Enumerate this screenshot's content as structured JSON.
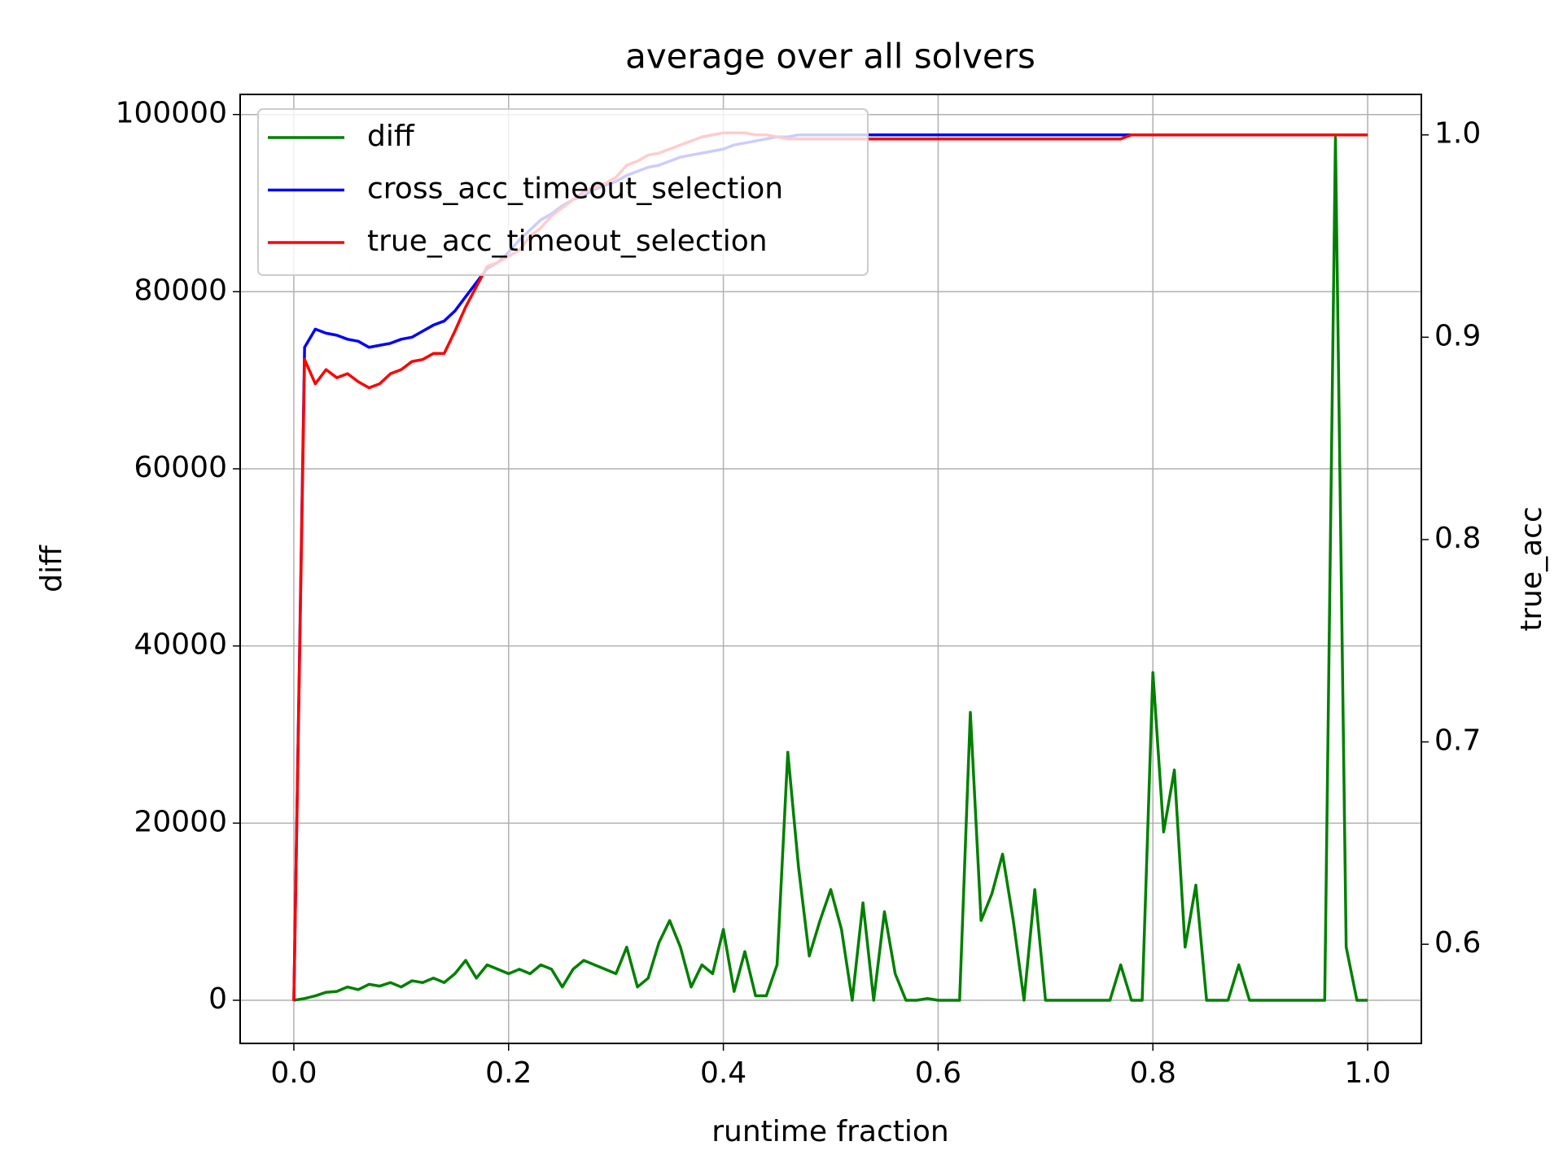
{
  "chart_data": {
    "type": "line",
    "title": "average over all solvers",
    "xlabel": "runtime fraction",
    "ylabel": "diff",
    "y2label": "true_acc",
    "ylabel_color": "#008000",
    "y2label_color": "#ff0000",
    "x": [
      0.0,
      0.01,
      0.02,
      0.03,
      0.04,
      0.05,
      0.06,
      0.07,
      0.08,
      0.09,
      0.1,
      0.11,
      0.12,
      0.13,
      0.14,
      0.15,
      0.16,
      0.17,
      0.18,
      0.19,
      0.2,
      0.21,
      0.22,
      0.23,
      0.24,
      0.25,
      0.26,
      0.27,
      0.28,
      0.29,
      0.3,
      0.31,
      0.32,
      0.33,
      0.34,
      0.35,
      0.36,
      0.37,
      0.38,
      0.39,
      0.4,
      0.41,
      0.42,
      0.43,
      0.44,
      0.45,
      0.46,
      0.47,
      0.48,
      0.49,
      0.5,
      0.51,
      0.52,
      0.53,
      0.54,
      0.55,
      0.56,
      0.57,
      0.58,
      0.59,
      0.6,
      0.61,
      0.62,
      0.63,
      0.64,
      0.65,
      0.66,
      0.67,
      0.68,
      0.69,
      0.7,
      0.71,
      0.72,
      0.73,
      0.74,
      0.75,
      0.76,
      0.77,
      0.78,
      0.79,
      0.8,
      0.81,
      0.82,
      0.83,
      0.84,
      0.85,
      0.86,
      0.87,
      0.88,
      0.89,
      0.9,
      0.91,
      0.92,
      0.93,
      0.94,
      0.95,
      0.96,
      0.97,
      0.98,
      0.99,
      1.0
    ],
    "series": [
      {
        "name": "diff",
        "color": "#008000",
        "axis": "y",
        "values": [
          0,
          200,
          500,
          900,
          1000,
          1500,
          1200,
          1800,
          1600,
          2000,
          1500,
          2200,
          2000,
          2500,
          2000,
          3000,
          4500,
          2500,
          4000,
          3500,
          3000,
          3500,
          3000,
          4000,
          3500,
          1500,
          3500,
          4500,
          4000,
          3500,
          3000,
          6000,
          1500,
          2500,
          6500,
          9000,
          6000,
          1500,
          4000,
          3000,
          8000,
          1000,
          5500,
          500,
          500,
          4000,
          28000,
          15000,
          5000,
          9000,
          12500,
          8000,
          0,
          11000,
          0,
          10000,
          3000,
          0,
          0,
          200,
          0,
          0,
          0,
          32500,
          9000,
          12000,
          16500,
          9000,
          0,
          12500,
          0,
          0,
          0,
          0,
          0,
          0,
          0,
          4000,
          0,
          0,
          37000,
          19000,
          26000,
          6000,
          13000,
          0,
          0,
          0,
          4000,
          0,
          0,
          0,
          0,
          0,
          0,
          0,
          0,
          97400,
          6000,
          0,
          0
        ]
      },
      {
        "name": "cross_acc_timeout_selection",
        "color": "#0000ff",
        "axis": "y2",
        "values": [
          0.572,
          0.895,
          0.904,
          0.902,
          0.901,
          0.899,
          0.898,
          0.895,
          0.896,
          0.897,
          0.899,
          0.9,
          0.903,
          0.906,
          0.908,
          0.913,
          0.92,
          0.927,
          0.934,
          0.937,
          0.942,
          0.948,
          0.953,
          0.958,
          0.961,
          0.965,
          0.968,
          0.97,
          0.973,
          0.975,
          0.977,
          0.98,
          0.982,
          0.984,
          0.985,
          0.987,
          0.989,
          0.99,
          0.991,
          0.992,
          0.993,
          0.995,
          0.996,
          0.997,
          0.998,
          0.999,
          0.999,
          1.0,
          1.0,
          1.0,
          1.0,
          1.0,
          1.0,
          1.0,
          1.0,
          1.0,
          1.0,
          1.0,
          1.0,
          1.0,
          1.0,
          1.0,
          1.0,
          1.0,
          1.0,
          1.0,
          1.0,
          1.0,
          1.0,
          1.0,
          1.0,
          1.0,
          1.0,
          1.0,
          1.0,
          1.0,
          1.0,
          1.0,
          1.0,
          1.0,
          1.0,
          1.0,
          1.0,
          1.0,
          1.0,
          1.0,
          1.0,
          1.0,
          1.0,
          1.0,
          1.0,
          1.0,
          1.0,
          1.0,
          1.0,
          1.0,
          1.0,
          1.0,
          1.0,
          1.0,
          1.0
        ]
      },
      {
        "name": "true_acc_timeout_selection",
        "color": "#ff0000",
        "axis": "y2",
        "values": [
          0.572,
          0.889,
          0.877,
          0.884,
          0.88,
          0.882,
          0.878,
          0.875,
          0.877,
          0.882,
          0.884,
          0.888,
          0.889,
          0.892,
          0.892,
          0.903,
          0.915,
          0.925,
          0.935,
          0.937,
          0.94,
          0.943,
          0.95,
          0.954,
          0.96,
          0.964,
          0.968,
          0.972,
          0.974,
          0.976,
          0.979,
          0.985,
          0.987,
          0.99,
          0.991,
          0.993,
          0.995,
          0.997,
          0.999,
          1.0,
          1.001,
          1.001,
          1.001,
          1.0,
          1.0,
          0.999,
          0.998,
          0.998,
          0.998,
          0.998,
          0.998,
          0.998,
          0.998,
          0.998,
          0.998,
          0.998,
          0.998,
          0.998,
          0.998,
          0.998,
          0.998,
          0.998,
          0.998,
          0.998,
          0.998,
          0.998,
          0.998,
          0.998,
          0.998,
          0.998,
          0.998,
          0.998,
          0.998,
          0.998,
          0.998,
          0.998,
          0.998,
          0.998,
          1.0,
          1.0,
          1.0,
          1.0,
          1.0,
          1.0,
          1.0,
          1.0,
          1.0,
          1.0,
          1.0,
          1.0,
          1.0,
          1.0,
          1.0,
          1.0,
          1.0,
          1.0,
          1.0,
          1.0,
          1.0,
          1.0,
          1.0
        ]
      }
    ],
    "xlim": [
      -0.05,
      1.05
    ],
    "xticks": [
      {
        "value": 0,
        "label": "0.0"
      },
      0.2,
      0.4,
      0.6,
      0.8,
      {
        "value": 1,
        "label": "1.0"
      }
    ],
    "ylim": [
      -4870,
      102270
    ],
    "yticks": [
      0,
      20000,
      40000,
      60000,
      80000,
      100000
    ],
    "y2lim": [
      0.551,
      1.02
    ],
    "y2ticks": [
      0.6,
      0.7,
      0.8,
      0.9,
      {
        "value": 1,
        "label": "1.0"
      }
    ],
    "grid": true,
    "legend": "upper-left"
  }
}
